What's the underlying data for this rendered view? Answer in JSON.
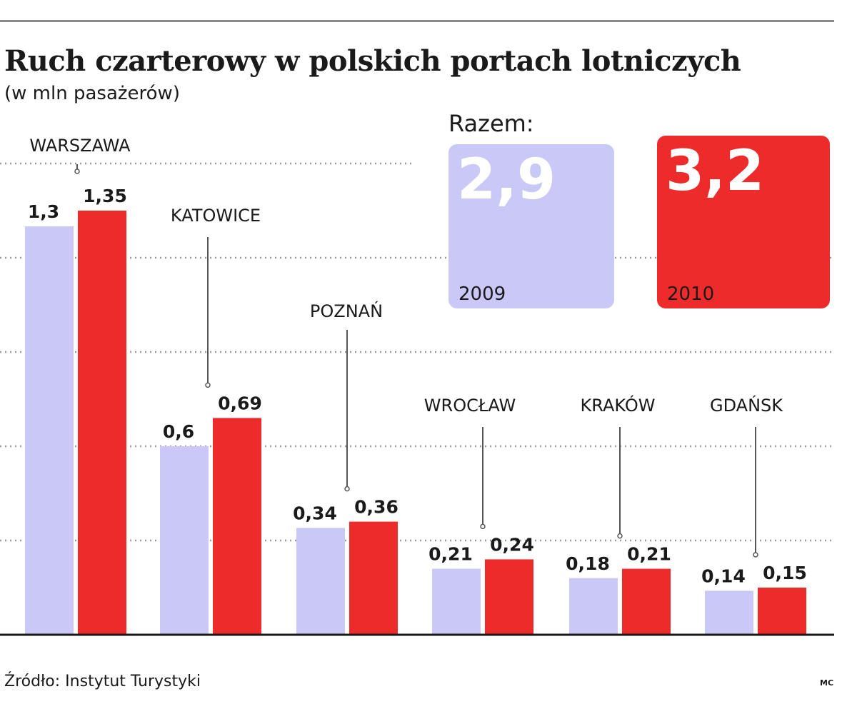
{
  "header": {
    "title": "Ruch czarterowy w polskich portach lotniczych",
    "subtitle": "(w mln pasażerów)"
  },
  "totals": {
    "label": "Razem:",
    "items": [
      {
        "year": "2009",
        "value": "2,9",
        "color": "#c9c8f6"
      },
      {
        "year": "2010",
        "value": "3,2",
        "color": "#ee2b2b"
      }
    ]
  },
  "chart_data": {
    "type": "bar",
    "title": "Ruch czarterowy w polskich portach lotniczych",
    "subtitle": "(w mln pasażerów)",
    "categories": [
      "WARSZAWA",
      "KATOWICE",
      "POZNAŃ",
      "WROCŁAW",
      "KRAKÓW",
      "GDAŃSK"
    ],
    "series": [
      {
        "name": "2009",
        "color": "#c9c8f6",
        "values": [
          1.3,
          0.6,
          0.34,
          0.21,
          0.18,
          0.14
        ],
        "labels": [
          "1,3",
          "0,6",
          "0,34",
          "0,21",
          "0,18",
          "0,14"
        ]
      },
      {
        "name": "2010",
        "color": "#ee2b2b",
        "values": [
          1.35,
          0.69,
          0.36,
          0.24,
          0.21,
          0.15
        ],
        "labels": [
          "1,35",
          "0,69",
          "0,36",
          "0,24",
          "0,21",
          "0,15"
        ]
      }
    ],
    "ylim": [
      0,
      1.5
    ],
    "grid": true,
    "legend": "top-right"
  },
  "footer": {
    "source": "Źródło: Instytut Turystyki",
    "credit": "MC"
  }
}
